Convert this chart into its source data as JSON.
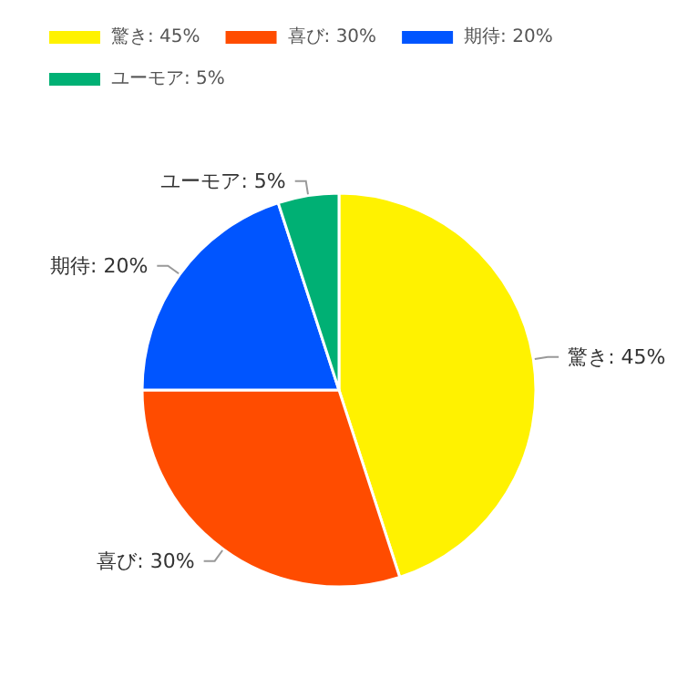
{
  "chart_data": {
    "type": "pie",
    "categories": [
      "驚き: 45%",
      "喜び: 30%",
      "期待: 20%",
      "ユーモア: 5%"
    ],
    "values": [
      45,
      30,
      20,
      5
    ],
    "colors": [
      "#fff200",
      "#ff4c00",
      "#0055ff",
      "#00b074"
    ],
    "legend": "top left"
  }
}
